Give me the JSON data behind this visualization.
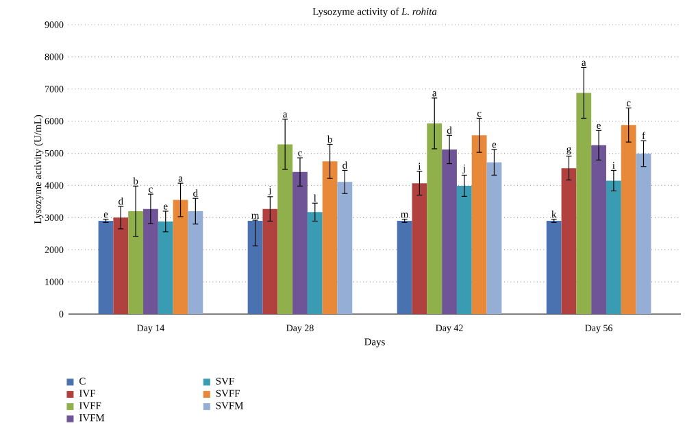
{
  "chart_data": {
    "type": "bar",
    "title": "Lysozyme activity of *L. rohita*",
    "xlabel": "Days",
    "ylabel": "Lysozyme activity  (U/mL)",
    "categories": [
      "Day 14",
      "Day 28",
      "Day 42",
      "Day 56"
    ],
    "ylim": [
      0,
      9000
    ],
    "yticks": [
      0,
      1000,
      2000,
      3000,
      4000,
      5000,
      6000,
      7000,
      8000,
      9000
    ],
    "grid": "y",
    "legend": "bottom",
    "series": [
      {
        "name": "C",
        "color": "#4a72b0",
        "values": [
          2900,
          2900,
          2900,
          2900
        ],
        "errors": [
          50,
          [
            2120,
            2920
          ],
          50,
          50
        ],
        "value_labels": [
          "e",
          "m",
          "m",
          "k"
        ]
      },
      {
        "name": "IVF",
        "color": "#b0413e",
        "values": [
          3000,
          3270,
          4070,
          4540
        ],
        "errors": [
          350,
          380,
          370,
          370
        ],
        "value_labels": [
          "d",
          "j",
          "i",
          "g"
        ]
      },
      {
        "name": "IVFF",
        "color": "#8fb04a",
        "values": [
          3200,
          5280,
          5930,
          6880
        ],
        "errors": [
          780,
          780,
          790,
          790
        ],
        "value_labels": [
          "b",
          "a",
          "a",
          "a"
        ]
      },
      {
        "name": "IVFM",
        "color": "#6f5597",
        "values": [
          3270,
          4420,
          5120,
          5250
        ],
        "errors": [
          460,
          440,
          440,
          460
        ],
        "value_labels": [
          "c",
          "c",
          "d",
          "e"
        ]
      },
      {
        "name": "SVF",
        "color": "#3a9cb3",
        "values": [
          2880,
          3170,
          3990,
          4150
        ],
        "errors": [
          320,
          280,
          330,
          320
        ],
        "value_labels": [
          "e",
          "l",
          "j",
          "i"
        ]
      },
      {
        "name": "SVFF",
        "color": "#e8893a",
        "values": [
          3550,
          4750,
          5560,
          5880
        ],
        "errors": [
          520,
          530,
          530,
          530
        ],
        "value_labels": [
          "a",
          "b",
          "c",
          "c"
        ]
      },
      {
        "name": "SVFM",
        "color": "#94aed6",
        "values": [
          3200,
          4110,
          4720,
          4990
        ],
        "errors": [
          400,
          360,
          400,
          400
        ],
        "value_labels": [
          "d",
          "d",
          "e",
          "f"
        ]
      }
    ]
  }
}
